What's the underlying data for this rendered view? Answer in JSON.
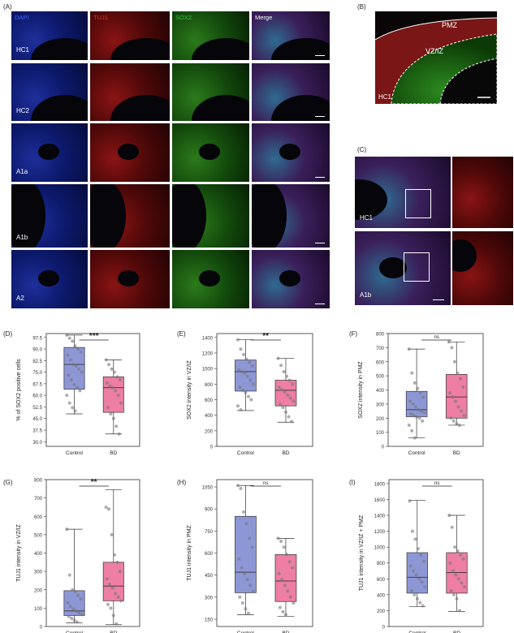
{
  "panelA": {
    "label": "(A)",
    "channels": [
      "DAPI",
      "TUJ1",
      "SOX2",
      "Merge"
    ],
    "rows": [
      "HC1",
      "HC2",
      "A1a",
      "A1b",
      "A2"
    ]
  },
  "panelB": {
    "label": "(B)",
    "pmz": "PMZ",
    "vziz": "VZ/IZ",
    "tile": "HC1"
  },
  "panelC": {
    "label": "(C)",
    "tiles": [
      "HC1",
      "A1b"
    ]
  },
  "charts_labels": {
    "D": "(D)",
    "E": "(E)",
    "F": "(F)",
    "G": "(G)",
    "H": "(H)",
    "I": "(I)"
  },
  "chart_data": [
    {
      "id": "D",
      "type": "box",
      "title": "",
      "ylabel": "% of SOX2 positive cells",
      "categories": [
        "Control",
        "BD"
      ],
      "yticks": [
        "97.5",
        "90.0",
        "82.5",
        "75.0",
        "67.5",
        "60.0",
        "52.5",
        "45.0",
        "37.5",
        "30.0"
      ],
      "ylim": [
        27,
        100
      ],
      "series": [
        {
          "name": "Control",
          "q1": 64,
          "median": 80,
          "q3": 91,
          "whisker_low": 48,
          "whisker_high": 99
        },
        {
          "name": "BD",
          "q1": 49,
          "median": 65,
          "q3": 72,
          "whisker_low": 35,
          "whisker_high": 83
        }
      ],
      "points": {
        "Control": [
          99,
          97,
          95,
          92,
          90,
          88,
          86,
          83,
          80,
          79,
          77,
          75,
          73,
          70,
          67,
          65,
          63,
          60,
          55,
          52,
          50
        ],
        "BD": [
          83,
          80,
          77,
          75,
          72,
          70,
          68,
          66,
          65,
          63,
          60,
          55,
          52,
          48,
          45,
          40,
          35
        ]
      },
      "significance": "***",
      "colors": [
        "#8e97d6",
        "#ee7ea3"
      ]
    },
    {
      "id": "E",
      "type": "box",
      "ylabel": "SOX2 intensity in VZ/IZ",
      "categories": [
        "Control",
        "BD"
      ],
      "yticks": [
        "1400",
        "1200",
        "1000",
        "800",
        "600",
        "400",
        "200",
        "0"
      ],
      "ylim": [
        0,
        1450
      ],
      "series": [
        {
          "name": "Control",
          "q1": 710,
          "median": 960,
          "q3": 1110,
          "whisker_low": 460,
          "whisker_high": 1370
        },
        {
          "name": "BD",
          "q1": 520,
          "median": 720,
          "q3": 850,
          "whisker_low": 310,
          "whisker_high": 1130
        }
      ],
      "points": {
        "Control": [
          1370,
          1250,
          1180,
          1120,
          1080,
          1030,
          980,
          960,
          940,
          900,
          850,
          800,
          760,
          720,
          690,
          640,
          600,
          520,
          470
        ],
        "BD": [
          1130,
          1040,
          960,
          900,
          850,
          800,
          760,
          730,
          700,
          660,
          620,
          580,
          540,
          500,
          440,
          380,
          320
        ]
      },
      "significance": "**",
      "colors": [
        "#8e97d6",
        "#ee7ea3"
      ]
    },
    {
      "id": "F",
      "type": "box",
      "ylabel": "SOX2 intensity in PMZ",
      "categories": [
        "Control",
        "BD"
      ],
      "yticks": [
        "800",
        "700",
        "600",
        "500",
        "400",
        "300",
        "200",
        "100",
        "0"
      ],
      "ylim": [
        0,
        800
      ],
      "series": [
        {
          "name": "Control",
          "q1": 210,
          "median": 260,
          "q3": 390,
          "whisker_low": 60,
          "whisker_high": 690
        },
        {
          "name": "BD",
          "q1": 200,
          "median": 350,
          "q3": 510,
          "whisker_low": 150,
          "whisker_high": 740
        }
      ],
      "points": {
        "Control": [
          690,
          520,
          450,
          410,
          380,
          350,
          320,
          300,
          280,
          260,
          250,
          240,
          230,
          220,
          210,
          200,
          180,
          150,
          110,
          60
        ],
        "BD": [
          740,
          700,
          600,
          520,
          480,
          420,
          380,
          350,
          320,
          280,
          250,
          220,
          200,
          180,
          160,
          150
        ]
      },
      "significance": "ns",
      "colors": [
        "#8e97d6",
        "#ee7ea3"
      ]
    },
    {
      "id": "G",
      "type": "box",
      "ylabel": "TUJ1 intensity in VZ/IZ",
      "categories": [
        "Control",
        "BD"
      ],
      "yticks": [
        "800",
        "700",
        "600",
        "500",
        "400",
        "300",
        "200",
        "100",
        "0"
      ],
      "ylim": [
        0,
        800
      ],
      "series": [
        {
          "name": "Control",
          "q1": 60,
          "median": 85,
          "q3": 195,
          "whisker_low": 20,
          "whisker_high": 530
        },
        {
          "name": "BD",
          "q1": 140,
          "median": 220,
          "q3": 350,
          "whisker_low": 10,
          "whisker_high": 745
        }
      ],
      "points": {
        "Control": [
          530,
          280,
          200,
          190,
          170,
          150,
          130,
          110,
          95,
          85,
          75,
          65,
          55,
          45,
          35,
          25
        ],
        "BD": [
          650,
          640,
          500,
          390,
          350,
          300,
          260,
          230,
          210,
          180,
          160,
          140,
          120,
          100,
          60,
          15
        ]
      },
      "significance": "**",
      "colors": [
        "#8e97d6",
        "#ee7ea3"
      ]
    },
    {
      "id": "H",
      "type": "box",
      "ylabel": "TUJ1 intensity in PMZ",
      "categories": [
        "Control",
        "BD"
      ],
      "yticks": [
        "1050",
        "900",
        "750",
        "600",
        "450",
        "300",
        "150"
      ],
      "ylim": [
        100,
        1100
      ],
      "series": [
        {
          "name": "Control",
          "q1": 330,
          "median": 470,
          "q3": 850,
          "whisker_low": 180,
          "whisker_high": 1060
        },
        {
          "name": "BD",
          "q1": 270,
          "median": 410,
          "q3": 590,
          "whisker_low": 170,
          "whisker_high": 700
        }
      ],
      "points": {
        "Control": [
          1060,
          1040,
          880,
          800,
          700,
          640,
          560,
          500,
          460,
          420,
          380,
          340,
          300,
          260,
          220,
          190
        ],
        "BD": [
          700,
          680,
          640,
          590,
          540,
          500,
          460,
          420,
          380,
          340,
          300,
          260,
          230,
          200,
          180
        ]
      },
      "significance": "ns",
      "colors": [
        "#8e97d6",
        "#ee7ea3"
      ]
    },
    {
      "id": "I",
      "type": "box",
      "ylabel": "TUJ1  intensity in VZ/IZ + PMZ",
      "categories": [
        "Control",
        "BD"
      ],
      "yticks": [
        "1800",
        "1600",
        "1400",
        "1200",
        "1000",
        "800",
        "600",
        "400",
        "200",
        "0"
      ],
      "ylim": [
        0,
        1850
      ],
      "series": [
        {
          "name": "Control",
          "q1": 420,
          "median": 620,
          "q3": 930,
          "whisker_low": 250,
          "whisker_high": 1590
        },
        {
          "name": "BD",
          "q1": 420,
          "median": 680,
          "q3": 930,
          "whisker_low": 190,
          "whisker_high": 1400
        }
      ],
      "points": {
        "Control": [
          1580,
          1200,
          1100,
          980,
          900,
          820,
          760,
          700,
          650,
          600,
          560,
          500,
          450,
          400,
          350,
          300,
          260
        ],
        "BD": [
          1400,
          1250,
          1000,
          950,
          900,
          850,
          800,
          700,
          650,
          600,
          550,
          500,
          450,
          400,
          350,
          200
        ]
      },
      "significance": "ns",
      "colors": [
        "#8e97d6",
        "#ee7ea3"
      ]
    }
  ]
}
